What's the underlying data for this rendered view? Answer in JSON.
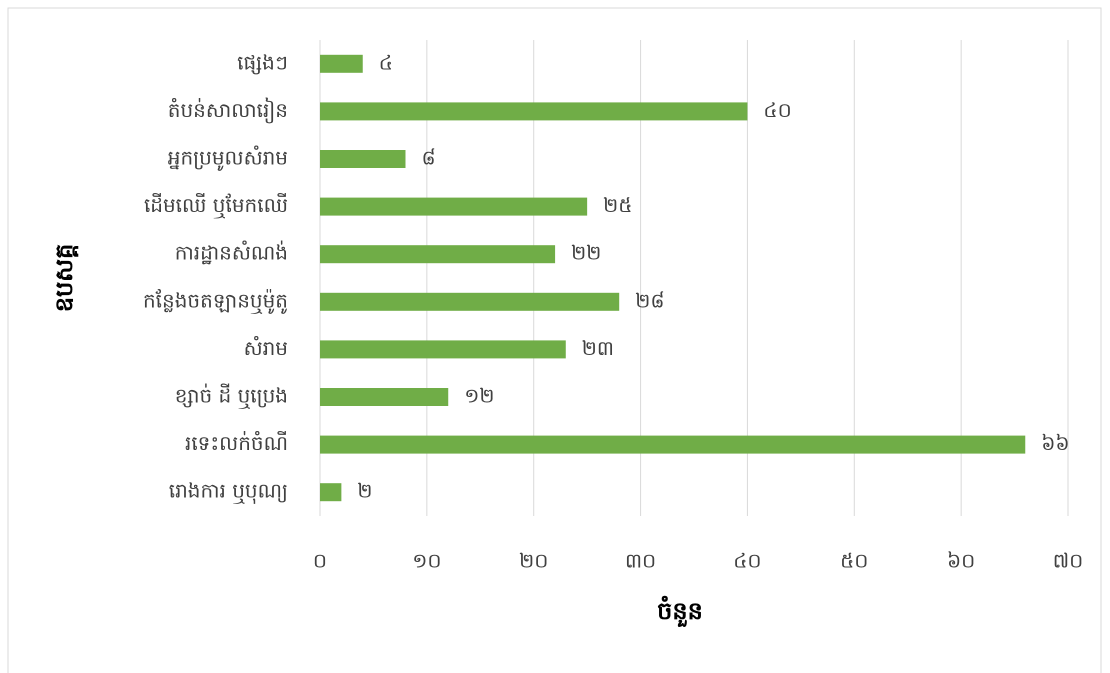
{
  "chart_data": {
    "type": "barh",
    "categories": [
      "ផ្សេងៗ",
      "តំបន់សាលារៀន",
      "អ្នកប្រមូលសំរាម",
      "ដើមឈើ ឬមែកឈើ",
      "ការដ្ឋានសំណង់",
      "កន្លែងចតឡានឬម៉ូតូ",
      "សំរាម",
      "ខ្សាច់ ដី ឬប្រេង",
      "រទេះលក់ចំណី",
      "រោងការ ឬបុណ្យ"
    ],
    "values": [
      4,
      40,
      8,
      25,
      22,
      28,
      23,
      12,
      66,
      2
    ],
    "value_labels": [
      "៤",
      "៤០",
      "៨",
      "២៥",
      "២២",
      "២៨",
      "២៣",
      "១២",
      "៦៦",
      "២"
    ],
    "color": "#70ad47",
    "xlim": [
      0,
      70
    ],
    "xticks": [
      {
        "value": 0,
        "label": "០"
      },
      {
        "value": 10,
        "label": "១០"
      },
      {
        "value": 20,
        "label": "២០"
      },
      {
        "value": 30,
        "label": "៣០"
      },
      {
        "value": 40,
        "label": "៤០"
      },
      {
        "value": 50,
        "label": "៥០"
      },
      {
        "value": 60,
        "label": "៦០"
      },
      {
        "value": 70,
        "label": "៧០"
      }
    ],
    "xlabel": "ចំនួន",
    "ylabel": "ឧបសគ្គ",
    "grid": true
  }
}
